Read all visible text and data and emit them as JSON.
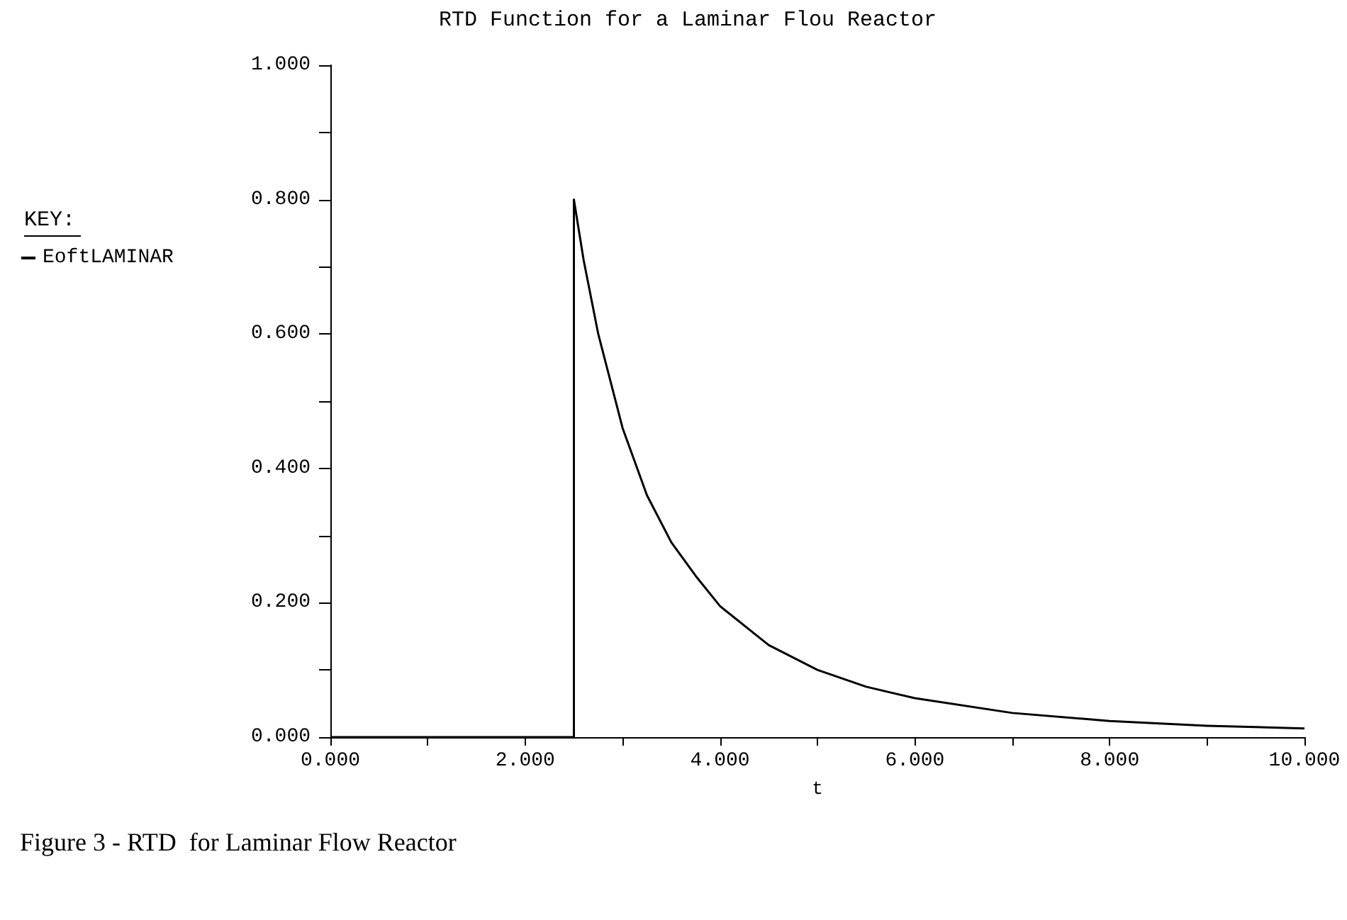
{
  "chart_data": {
    "type": "line",
    "title": "RTD Function for a Laminar Flou Reactor",
    "xlabel": "t",
    "legend_title": "KEY:",
    "legend": "top left",
    "grid": false,
    "marker": "none",
    "line_style": "solid",
    "annotations": [
      "Figure 3 - RTD  for Laminar Flow Reactor"
    ],
    "xlim": [
      0,
      10
    ],
    "ylim": [
      0,
      1
    ],
    "xticks": [
      {
        "value": 0,
        "label": "0.000"
      },
      {
        "value": 1,
        "label": null
      },
      {
        "value": 2,
        "label": "2.000"
      },
      {
        "value": 3,
        "label": null
      },
      {
        "value": 4,
        "label": "4.000"
      },
      {
        "value": 5,
        "label": null
      },
      {
        "value": 6,
        "label": "6.000"
      },
      {
        "value": 7,
        "label": null
      },
      {
        "value": 8,
        "label": "8.000"
      },
      {
        "value": 9,
        "label": null
      },
      {
        "value": 10,
        "label": "10.000"
      }
    ],
    "yticks": [
      {
        "value": 0,
        "label": "0.000"
      },
      {
        "value": 0.1,
        "label": null
      },
      {
        "value": 0.2,
        "label": "0.200"
      },
      {
        "value": 0.3,
        "label": null
      },
      {
        "value": 0.4,
        "label": "0.400"
      },
      {
        "value": 0.5,
        "label": null
      },
      {
        "value": 0.6,
        "label": "0.600"
      },
      {
        "value": 0.7,
        "label": null
      },
      {
        "value": 0.8,
        "label": "0.800"
      },
      {
        "value": 0.9,
        "label": null
      },
      {
        "value": 1,
        "label": "1.000"
      }
    ],
    "series": [
      {
        "name": "EoftLAMINAR",
        "color": "#000000",
        "x": [
          0,
          2.5,
          2.5,
          2.6,
          2.75,
          3,
          3.25,
          3.5,
          3.75,
          4,
          4.5,
          5,
          5.5,
          6,
          7,
          8,
          9,
          10
        ],
        "values": [
          0,
          0,
          0.8,
          0.71,
          0.6,
          0.46,
          0.36,
          0.29,
          0.24,
          0.195,
          0.137,
          0.1,
          0.075,
          0.058,
          0.036,
          0.024,
          0.017,
          0.013
        ]
      }
    ]
  }
}
